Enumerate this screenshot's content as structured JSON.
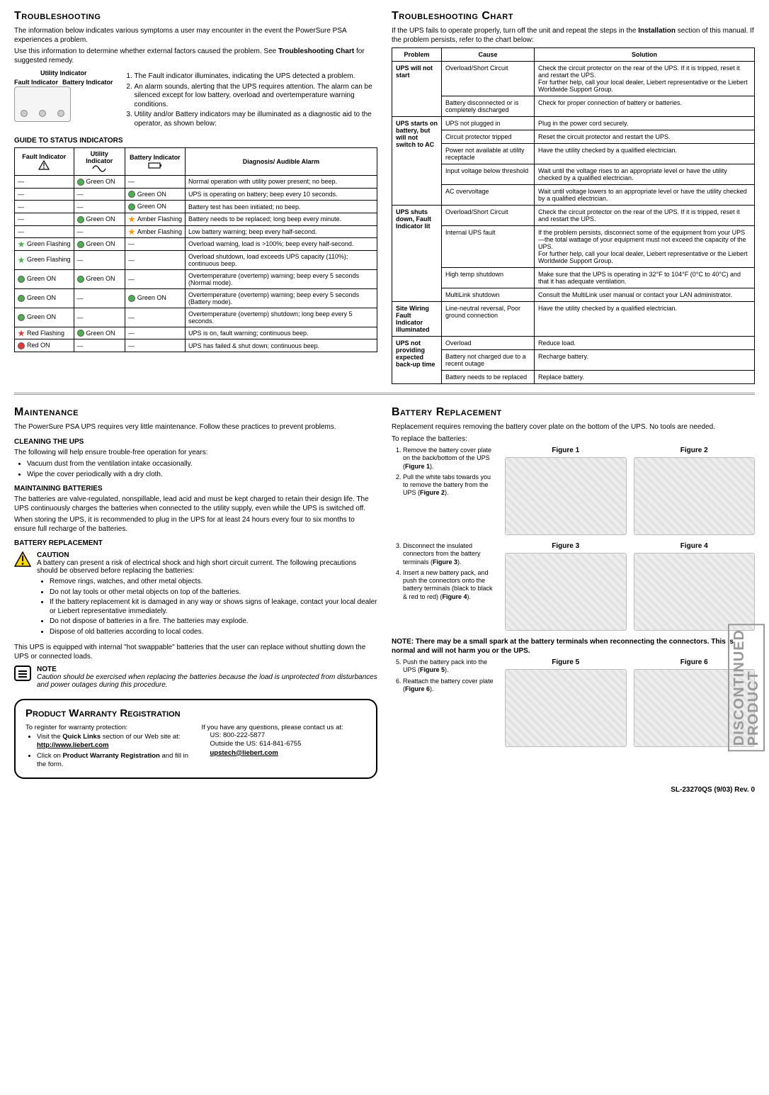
{
  "sections": {
    "troubleshooting": {
      "title": "Troubleshooting",
      "intro1": "The information below indicates various symptoms a user may encounter in the event the PowerSure PSA experiences a problem.",
      "intro2_a": "Use this information to determine whether external factors caused the problem. See ",
      "intro2_b": "Troubleshooting Chart",
      "intro2_c": " for suggested remedy.",
      "diag_labels": {
        "utility": "Utility Indicator",
        "fault": "Fault Indicator",
        "battery": "Battery Indicator"
      },
      "events": [
        "The Fault indicator illuminates, indicating the UPS detected a problem.",
        "An alarm sounds, alerting that the UPS requires attention. The alarm can be silenced except for low battery, overload and overtemperature warning conditions.",
        "Utility and/or Battery indicators may be illuminated as a diagnostic aid to the operator, as shown below:"
      ],
      "guide_header": "GUIDE TO STATUS INDICATORS",
      "status_headers": [
        "Fault Indicator",
        "Utility Indicator",
        "Battery Indicator",
        "Diagnosis/ Audible Alarm"
      ],
      "status_rows": [
        {
          "fault": {
            "t": "—"
          },
          "util": {
            "c": "green",
            "t": "Green ON"
          },
          "batt": {
            "t": "—"
          },
          "diag": "Normal operation with utility power present; no beep."
        },
        {
          "fault": {
            "t": "—"
          },
          "util": {
            "t": "—"
          },
          "batt": {
            "c": "green",
            "t": "Green ON"
          },
          "diag": "UPS is operating on battery; beep every 10 seconds."
        },
        {
          "fault": {
            "t": "—"
          },
          "util": {
            "t": "—"
          },
          "batt": {
            "c": "green",
            "t": "Green ON"
          },
          "diag": "Battery test has been initiated; no beep."
        },
        {
          "fault": {
            "t": "—"
          },
          "util": {
            "c": "green",
            "t": "Green ON"
          },
          "batt": {
            "c": "amber",
            "s": true,
            "t": "Amber Flashing"
          },
          "diag": "Battery needs to be replaced; long beep every minute."
        },
        {
          "fault": {
            "t": "—"
          },
          "util": {
            "t": "—"
          },
          "batt": {
            "c": "amber",
            "s": true,
            "t": "Amber Flashing"
          },
          "diag": "Low battery warning; beep every half-second."
        },
        {
          "fault": {
            "c": "green",
            "s": true,
            "t": "Green Flashing"
          },
          "util": {
            "c": "green",
            "t": "Green ON"
          },
          "batt": {
            "t": "—"
          },
          "diag": "Overload warning, load is >100%; beep every half-second."
        },
        {
          "fault": {
            "c": "green",
            "s": true,
            "t": "Green Flashing"
          },
          "util": {
            "t": "—"
          },
          "batt": {
            "t": "—"
          },
          "diag": "Overload shutdown, load exceeds UPS capacity (110%); continuous beep."
        },
        {
          "fault": {
            "c": "green",
            "t": "Green ON"
          },
          "util": {
            "c": "green",
            "t": "Green ON"
          },
          "batt": {
            "t": "—"
          },
          "diag": "Overtemperature (overtemp) warning; beep every 5 seconds (Normal mode)."
        },
        {
          "fault": {
            "c": "green",
            "t": "Green ON"
          },
          "util": {
            "t": "—"
          },
          "batt": {
            "c": "green",
            "t": "Green ON"
          },
          "diag": "Overtemperature (overtemp) warning; beep every 5 seconds (Battery mode)."
        },
        {
          "fault": {
            "c": "green",
            "t": "Green ON"
          },
          "util": {
            "t": "—"
          },
          "batt": {
            "t": "—"
          },
          "diag": "Overtemperature (overtemp) shutdown; long beep every 5 seconds."
        },
        {
          "fault": {
            "c": "red",
            "s": true,
            "t": "Red Flashing"
          },
          "util": {
            "c": "green",
            "t": "Green ON"
          },
          "batt": {
            "t": "—"
          },
          "diag": "UPS is on, fault warning; continuous beep."
        },
        {
          "fault": {
            "c": "red",
            "t": "Red ON"
          },
          "util": {
            "t": "—"
          },
          "batt": {
            "t": "—"
          },
          "diag": "UPS has failed & shut down; continuous beep."
        }
      ]
    },
    "chart": {
      "title": "Troubleshooting Chart",
      "intro_a": "If the UPS fails to operate properly, turn off the unit and repeat the steps in the ",
      "intro_b": "Installation",
      "intro_c": " section of this manual. If the problem persists, refer to the chart below:",
      "headers": [
        "Problem",
        "Cause",
        "Solution"
      ],
      "groups": [
        {
          "problem": "UPS will not start",
          "rows": [
            {
              "cause": "Overload/Short Circuit",
              "solution": "Check the circuit protector on the rear of the UPS. If it is tripped, reset it and restart the UPS.\nFor further help, call your local dealer, Liebert representative or the Liebert Worldwide Support Group."
            },
            {
              "cause": "Battery disconnected or is completely discharged",
              "solution": "Check for proper connection of battery or batteries."
            }
          ]
        },
        {
          "problem": "UPS starts on battery, but will not switch to AC",
          "rows": [
            {
              "cause": "UPS not plugged in",
              "solution": "Plug in the power cord securely."
            },
            {
              "cause": "Circuit protector tripped",
              "solution": "Reset the circuit protector and restart the UPS."
            },
            {
              "cause": "Power not available at utility receptacle",
              "solution": "Have the utility checked by a qualified electrician."
            },
            {
              "cause": "Input voltage below threshold",
              "solution": "Wait until the voltage rises to an appropriate level or have the utility checked by a qualified electrician."
            },
            {
              "cause": "AC overvoltage",
              "solution": "Wait until voltage lowers to an appropriate level or have the utility checked by a qualified electrician."
            }
          ]
        },
        {
          "problem": "UPS shuts down, Fault Indicator lit",
          "rows": [
            {
              "cause": "Overload/Short Circuit",
              "solution": "Check the circuit protector on the rear of the UPS. If it is tripped, reset it and restart the UPS."
            },
            {
              "cause": "Internal UPS fault",
              "solution": "If the problem persists, disconnect some of the equipment from your UPS—the total wattage of your equipment must not exceed the capacity of the UPS.\nFor further help, call your local dealer, Liebert representative or the Liebert Worldwide Support Group."
            },
            {
              "cause": "High temp shutdown",
              "solution": "Make sure that the UPS is operating in 32°F to 104°F (0°C to 40°C) and that it has adequate ventilation."
            },
            {
              "cause": "MultiLink shutdown",
              "solution": "Consult the MultiLink user manual or contact your LAN administrator."
            }
          ]
        },
        {
          "problem": "Site Wiring Fault Indicator illuminated",
          "rows": [
            {
              "cause": "Line-neutral reversal, Poor ground connection",
              "solution": "Have the utility checked by a qualified electrician."
            }
          ]
        },
        {
          "problem": "UPS not providing expected back-up time",
          "rows": [
            {
              "cause": "Overload",
              "solution": "Reduce load."
            },
            {
              "cause": "Battery not charged due to a recent outage",
              "solution": "Recharge battery."
            },
            {
              "cause": "Battery needs to be replaced",
              "solution": "Replace battery."
            }
          ]
        }
      ]
    },
    "maintenance": {
      "title": "Maintenance",
      "intro": "The PowerSure PSA UPS requires very little maintenance. Follow these practices to prevent problems.",
      "h1": "CLEANING THE UPS",
      "p1": "The following will help ensure trouble-free operation for years:",
      "bul1": [
        "Vacuum dust from the ventilation intake occasionally.",
        "Wipe the cover periodically with a dry cloth."
      ],
      "h2": "MAINTAINING BATTERIES",
      "p2": "The batteries are valve-regulated, nonspillable, lead acid and must be kept charged to retain their design life. The UPS continuously charges the batteries when connected to the utility supply, even while the UPS is switched off.",
      "p3": "When storing the UPS, it is recommended to plug in the UPS for at least 24 hours every four to six months to ensure full recharge of the batteries.",
      "h3": "BATTERY REPLACEMENT",
      "caution_title": "CAUTION",
      "caution_text": "A battery can present a risk of electrical shock and high short circuit current. The following precautions should be observed before replacing the batteries:",
      "caution_bul": [
        "Remove rings, watches, and other metal objects.",
        "Do not lay tools or other metal objects on top of the batteries.",
        "If the battery replacement kit is damaged in any way or shows signs of leakage, contact your local dealer or Liebert representative immediately.",
        "Do not dispose of batteries in a fire. The batteries may explode.",
        "Dispose of old batteries according to local codes."
      ],
      "p4": "This UPS is equipped with internal \"hot swappable\" batteries that the user can replace without shutting down the UPS or connected loads.",
      "note_title": "NOTE",
      "note_text": "Caution should be exercised when replacing the batteries because the load is unprotected from disturbances and power outages during this procedure."
    },
    "battrepl": {
      "title": "Battery Replacement",
      "intro": "Replacement requires removing the battery cover plate on the bottom of the UPS. No tools are needed.",
      "lead": "To replace the batteries:",
      "steps12": [
        "Remove the battery cover plate on the back/bottom of the UPS (<b>Figure 1</b>).",
        "Pull the white tabs towards you to remove the battery from the UPS (<b>Figure 2</b>)."
      ],
      "steps34": [
        "Disconnect the insulated connectors from the battery terminals (<b>Figure 3</b>).",
        "Insert a new battery pack, and push the connectors onto the battery terminals (black to black & red to red) (<b>Figure 4</b>)."
      ],
      "note": "NOTE: There may be a small spark at the battery terminals when reconnecting the connectors. This is normal and will not harm you or the UPS.",
      "steps56": [
        "Push the battery pack into the UPS (<b>Figure 5</b>).",
        "Reattach the battery cover plate (<b>Figure 6</b>)."
      ],
      "figcaps": [
        "Figure 1",
        "Figure 2",
        "Figure 3",
        "Figure 4",
        "Figure 5",
        "Figure 6"
      ]
    },
    "warranty": {
      "title": "Product Warranty Registration",
      "left_lead": "To register for warranty protection:",
      "left_items_a": "Visit the ",
      "left_items_b": "Quick Links",
      "left_items_c": " section of our Web site at:",
      "site": "http://www.liebert.com",
      "left_item2_a": "Click on ",
      "left_item2_b": "Product Warranty Registration",
      "left_item2_c": " and fill in the form.",
      "right_lead": "If you have any questions, please contact us at:",
      "phone_us": "US: 800-222-5877",
      "phone_intl": "Outside the US: 614-841-6755",
      "email": "upstech@liebert.com"
    },
    "footer": "SL-23270QS (9/03) Rev. 0",
    "stamp1": "DISCONTINUED",
    "stamp2": "PRODUCT"
  }
}
